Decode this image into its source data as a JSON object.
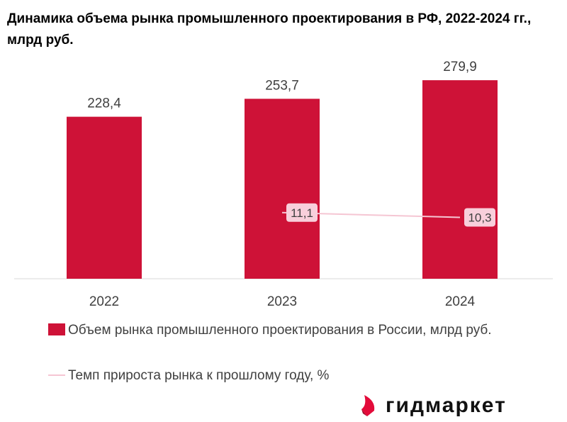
{
  "title": "Динамика объема рынка промышленного проектирования в РФ, 2022-2024 гг., млрд руб.",
  "chart_data": {
    "type": "bar",
    "categories": [
      "2022",
      "2023",
      "2024"
    ],
    "series": [
      {
        "name": "Объем рынка промышленного проектирования в России, млрд руб.",
        "type": "bar",
        "values": [
          228.4,
          253.7,
          279.9
        ],
        "labels": [
          "228,4",
          "253,7",
          "279,9"
        ],
        "color": "#CE1237"
      },
      {
        "name": "Темп прироста рынка к прошлому году, %",
        "type": "line",
        "values": [
          null,
          11.1,
          10.3
        ],
        "labels": [
          "",
          "11,1",
          "10,3"
        ],
        "color": "#F5C6D3"
      }
    ],
    "grid": false,
    "legend": "bottom"
  },
  "logo": {
    "text": "гидмаркет",
    "color": "#E30B3A"
  }
}
